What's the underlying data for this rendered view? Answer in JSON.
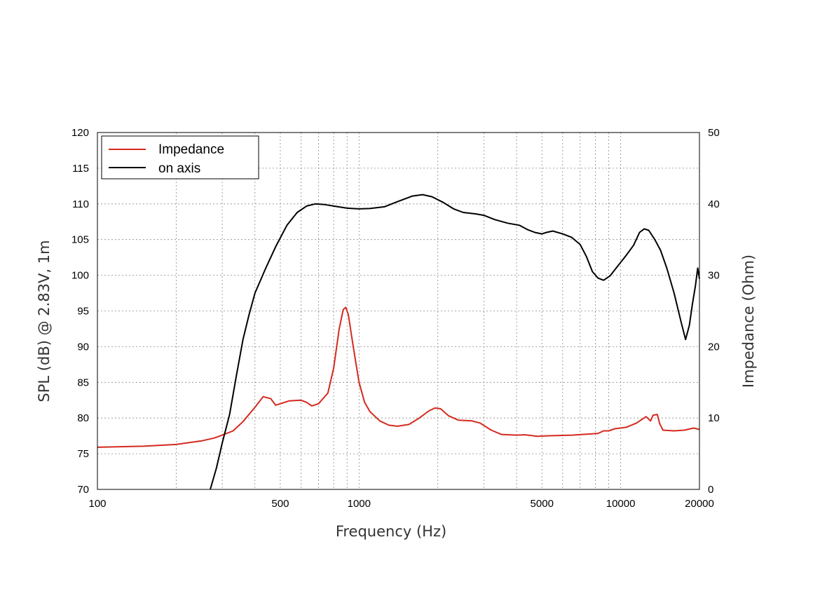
{
  "chart_data": {
    "type": "line",
    "title": "",
    "xlabel": "Frequency (Hz)",
    "ylabel": "SPL (dB) @ 2.83V, 1m",
    "y2label": "Impedance (Ohm)",
    "x_scale": "log",
    "xlim": [
      100,
      20000
    ],
    "ylim": [
      70,
      120
    ],
    "y2lim": [
      0,
      50
    ],
    "grid": true,
    "legend_position": "top-left",
    "x_ticks": [
      100,
      500,
      1000,
      5000,
      10000,
      20000
    ],
    "x_tick_labels": [
      "100",
      "500",
      "1000",
      "5000",
      "10000",
      "20000"
    ],
    "y_ticks": [
      70,
      75,
      80,
      85,
      90,
      95,
      100,
      105,
      110,
      115,
      120
    ],
    "y_tick_labels": [
      "70",
      "75",
      "80",
      "85",
      "90",
      "95",
      "100",
      "105",
      "110",
      "115",
      "120"
    ],
    "y2_ticks": [
      0,
      10,
      20,
      30,
      40,
      50
    ],
    "y2_tick_labels": [
      "0",
      "10",
      "20",
      "30",
      "40",
      "50"
    ],
    "series": [
      {
        "name": "Impedance",
        "color": "#d42a1e",
        "axis": "right",
        "points": [
          [
            100,
            5.9
          ],
          [
            150,
            6.05
          ],
          [
            200,
            6.3
          ],
          [
            250,
            6.8
          ],
          [
            280,
            7.2
          ],
          [
            300,
            7.6
          ],
          [
            330,
            8.2
          ],
          [
            360,
            9.5
          ],
          [
            400,
            11.5
          ],
          [
            430,
            13.0
          ],
          [
            460,
            12.7
          ],
          [
            480,
            11.8
          ],
          [
            500,
            12.0
          ],
          [
            540,
            12.4
          ],
          [
            600,
            12.5
          ],
          [
            630,
            12.2
          ],
          [
            660,
            11.7
          ],
          [
            700,
            12.0
          ],
          [
            760,
            13.5
          ],
          [
            800,
            17.0
          ],
          [
            840,
            22.5
          ],
          [
            870,
            25.2
          ],
          [
            890,
            25.5
          ],
          [
            910,
            24.5
          ],
          [
            950,
            20.0
          ],
          [
            1000,
            15.0
          ],
          [
            1050,
            12.2
          ],
          [
            1100,
            10.9
          ],
          [
            1200,
            9.6
          ],
          [
            1300,
            9.0
          ],
          [
            1400,
            8.85
          ],
          [
            1550,
            9.1
          ],
          [
            1700,
            10.0
          ],
          [
            1850,
            11.0
          ],
          [
            1950,
            11.4
          ],
          [
            2050,
            11.3
          ],
          [
            2200,
            10.3
          ],
          [
            2400,
            9.7
          ],
          [
            2700,
            9.6
          ],
          [
            2900,
            9.3
          ],
          [
            3200,
            8.3
          ],
          [
            3500,
            7.7
          ],
          [
            4000,
            7.6
          ],
          [
            4300,
            7.65
          ],
          [
            4800,
            7.45
          ],
          [
            5200,
            7.5
          ],
          [
            5800,
            7.55
          ],
          [
            6500,
            7.6
          ],
          [
            7500,
            7.75
          ],
          [
            8200,
            7.85
          ],
          [
            8600,
            8.2
          ],
          [
            9000,
            8.2
          ],
          [
            9500,
            8.5
          ],
          [
            10500,
            8.7
          ],
          [
            11500,
            9.3
          ],
          [
            12500,
            10.2
          ],
          [
            13000,
            9.6
          ],
          [
            13300,
            10.4
          ],
          [
            13800,
            10.5
          ],
          [
            14100,
            9.2
          ],
          [
            14500,
            8.3
          ],
          [
            16000,
            8.2
          ],
          [
            17500,
            8.3
          ],
          [
            19000,
            8.6
          ],
          [
            20000,
            8.4
          ]
        ]
      },
      {
        "name": "on axis",
        "color": "#000000",
        "axis": "left",
        "points": [
          [
            270,
            70.0
          ],
          [
            285,
            73.0
          ],
          [
            300,
            76.5
          ],
          [
            320,
            80.5
          ],
          [
            340,
            86.0
          ],
          [
            360,
            91.0
          ],
          [
            380,
            94.5
          ],
          [
            400,
            97.5
          ],
          [
            440,
            101.0
          ],
          [
            480,
            104.0
          ],
          [
            530,
            107.0
          ],
          [
            580,
            108.8
          ],
          [
            630,
            109.7
          ],
          [
            680,
            110.0
          ],
          [
            740,
            109.9
          ],
          [
            800,
            109.7
          ],
          [
            900,
            109.4
          ],
          [
            1000,
            109.3
          ],
          [
            1100,
            109.35
          ],
          [
            1250,
            109.6
          ],
          [
            1400,
            110.3
          ],
          [
            1600,
            111.1
          ],
          [
            1750,
            111.3
          ],
          [
            1900,
            111.0
          ],
          [
            2100,
            110.2
          ],
          [
            2300,
            109.3
          ],
          [
            2500,
            108.8
          ],
          [
            2800,
            108.6
          ],
          [
            3000,
            108.4
          ],
          [
            3300,
            107.8
          ],
          [
            3700,
            107.3
          ],
          [
            4100,
            107.0
          ],
          [
            4400,
            106.4
          ],
          [
            4700,
            106.0
          ],
          [
            5000,
            105.8
          ],
          [
            5200,
            106.0
          ],
          [
            5500,
            106.2
          ],
          [
            6000,
            105.8
          ],
          [
            6500,
            105.3
          ],
          [
            7000,
            104.3
          ],
          [
            7400,
            102.6
          ],
          [
            7800,
            100.5
          ],
          [
            8200,
            99.6
          ],
          [
            8600,
            99.3
          ],
          [
            9100,
            99.9
          ],
          [
            9700,
            101.2
          ],
          [
            10500,
            102.8
          ],
          [
            11200,
            104.2
          ],
          [
            11800,
            106.0
          ],
          [
            12300,
            106.5
          ],
          [
            12800,
            106.3
          ],
          [
            13500,
            105.0
          ],
          [
            14200,
            103.5
          ],
          [
            15000,
            101.0
          ],
          [
            16000,
            97.5
          ],
          [
            17000,
            93.5
          ],
          [
            17700,
            91.0
          ],
          [
            18300,
            93.0
          ],
          [
            18800,
            96.0
          ],
          [
            19300,
            98.5
          ],
          [
            19700,
            101.0
          ],
          [
            20000,
            99.5
          ]
        ]
      }
    ]
  }
}
